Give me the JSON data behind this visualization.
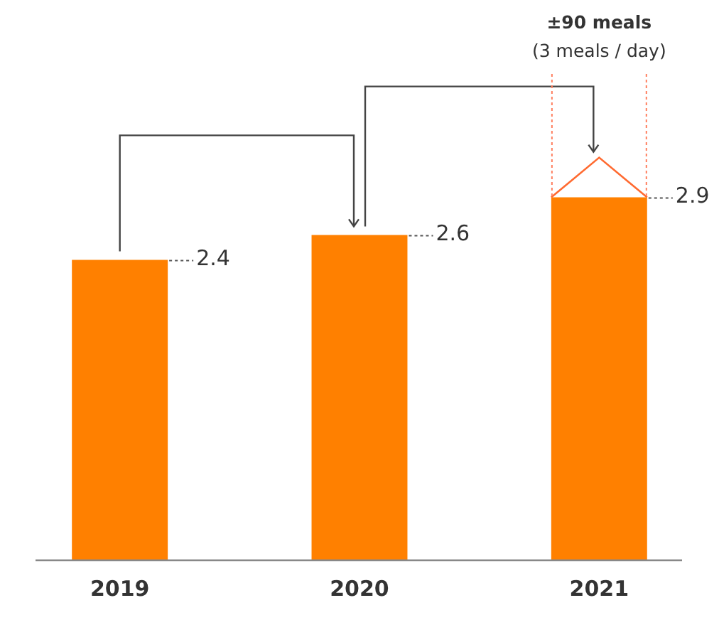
{
  "chart_data": {
    "type": "bar",
    "categories": [
      "2019",
      "2020",
      "2021"
    ],
    "values": [
      2.4,
      2.6,
      2.9
    ],
    "color": "#ff8000",
    "tick_labels": "x",
    "grid": false,
    "legend": false,
    "data_labels": true,
    "annotations": [
      "±90 meals",
      "(3 meals / day)"
    ]
  }
}
